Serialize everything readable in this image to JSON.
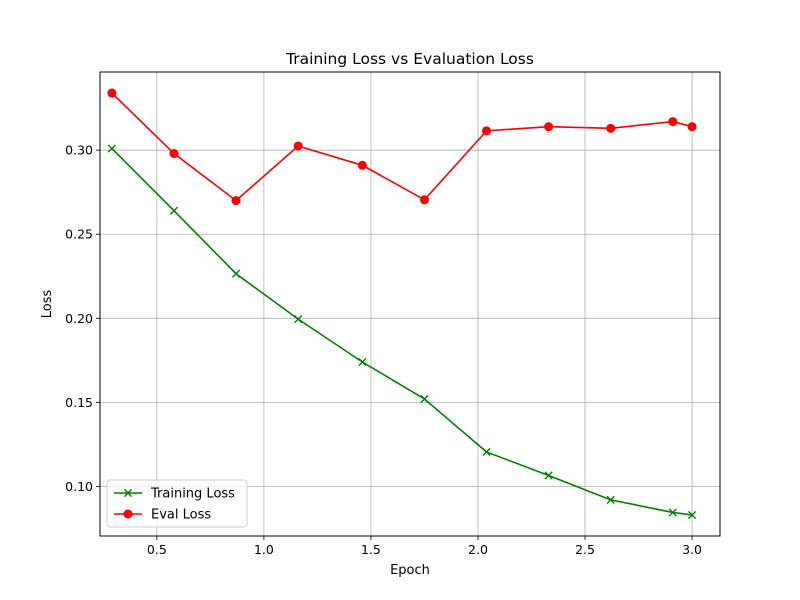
{
  "chart_data": {
    "type": "line",
    "title": "Training Loss vs Evaluation Loss",
    "xlabel": "Epoch",
    "ylabel": "Loss",
    "xlim": [
      0.2345,
      3.1305
    ],
    "ylim": [
      0.0705,
      0.3465
    ],
    "xticks": [
      0.5,
      1.0,
      1.5,
      2.0,
      2.5,
      3.0
    ],
    "xtick_labels": [
      "0.5",
      "1.0",
      "1.5",
      "2.0",
      "2.5",
      "3.0"
    ],
    "yticks": [
      0.1,
      0.15,
      0.2,
      0.25,
      0.3
    ],
    "ytick_labels": [
      "0.10",
      "0.15",
      "0.20",
      "0.25",
      "0.30"
    ],
    "grid": true,
    "legend_position": "lower-left",
    "series": [
      {
        "name": "Training Loss",
        "color": "#008000",
        "marker": "x",
        "x": [
          0.29,
          0.58,
          0.87,
          1.16,
          1.46,
          1.75,
          2.04,
          2.33,
          2.62,
          2.91,
          3.0
        ],
        "y": [
          0.301,
          0.264,
          0.2265,
          0.1995,
          0.174,
          0.152,
          0.1205,
          0.1065,
          0.092,
          0.0845,
          0.083
        ]
      },
      {
        "name": "Eval Loss",
        "color": "#ff0000",
        "marker": "o",
        "x": [
          0.29,
          0.58,
          0.87,
          1.16,
          1.46,
          1.75,
          2.04,
          2.33,
          2.62,
          2.91,
          3.0
        ],
        "y": [
          0.334,
          0.298,
          0.27,
          0.3025,
          0.291,
          0.2705,
          0.3115,
          0.314,
          0.313,
          0.317,
          0.314
        ]
      }
    ]
  }
}
